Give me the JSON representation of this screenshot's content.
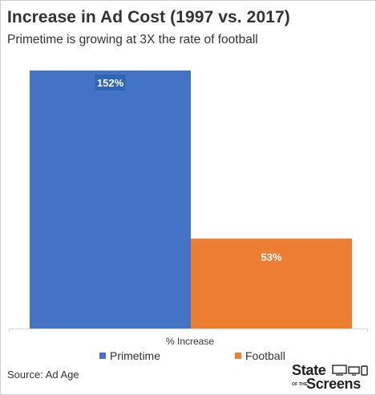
{
  "chart_data": {
    "type": "bar",
    "title": "Increase in Ad Cost (1997 vs. 2017)",
    "subtitle": "Primetime is growing at 3X the rate of football",
    "xlabel": "% Increase",
    "ylabel": "",
    "categories": [
      "% Increase"
    ],
    "series": [
      {
        "name": "Primetime",
        "values": [
          152
        ],
        "label": "152%",
        "color": "#4472c4"
      },
      {
        "name": "Football",
        "values": [
          53
        ],
        "label": "53%",
        "color": "#ed7d31"
      }
    ],
    "ylim": [
      0,
      160
    ],
    "grid": false,
    "legend": "bottom"
  },
  "footer": {
    "source": "Source: Ad Age"
  },
  "logo": {
    "line1": "State",
    "line2_small": "OF THE",
    "line2": "Screens",
    "icons": [
      "tv-icon",
      "monitor-icon",
      "phone-icon"
    ]
  }
}
